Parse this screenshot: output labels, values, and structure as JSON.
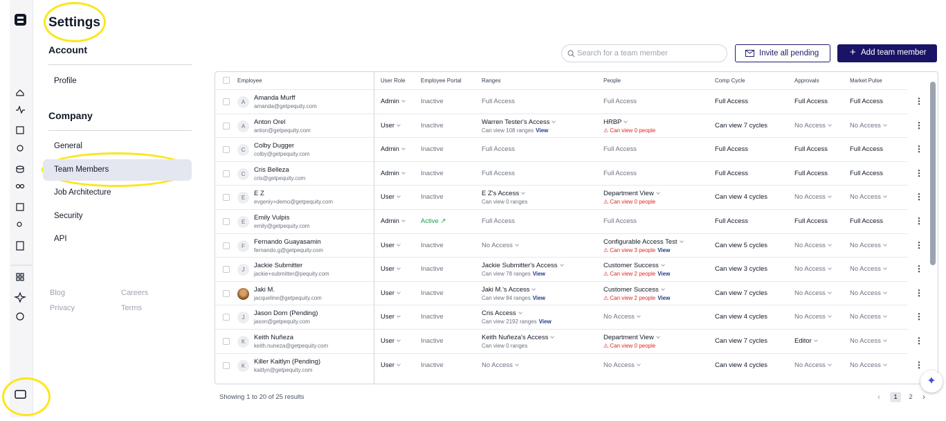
{
  "header": {
    "title": "Settings"
  },
  "nav": {
    "sections": [
      {
        "title": "Account",
        "items": [
          "Profile"
        ]
      },
      {
        "title": "Company",
        "items": [
          "General",
          "Team Members",
          "Job Architecture",
          "Security",
          "API"
        ]
      }
    ],
    "active": "Team Members",
    "footer": [
      "Blog",
      "Careers",
      "Privacy",
      "Terms"
    ]
  },
  "toolbar": {
    "search_placeholder": "Search for a team member",
    "invite": "Invite all pending",
    "add": "Add team member"
  },
  "table": {
    "columns": [
      "Employee",
      "User Role",
      "Employee Portal",
      "Ranges",
      "People",
      "Comp Cycle",
      "Approvals",
      "Market Pulse"
    ],
    "rows": [
      {
        "avatar": "A",
        "name": "Amanda Murff",
        "email": "amanda@getpequity.com",
        "role": "Admin",
        "portal": "Inactive",
        "ranges": {
          "text": "Full Access",
          "color": "#6b7280"
        },
        "people": {
          "text": "Full Access",
          "color": "#6b7280"
        },
        "comp": {
          "text": "Full Access"
        },
        "approvals": {
          "text": "Full Access"
        },
        "market": {
          "text": "Full Access"
        }
      },
      {
        "avatar": "A",
        "name": "Anton Orel",
        "email": "anton@getpequity.com",
        "role": "User",
        "portal": "Inactive",
        "ranges": {
          "text": "Warren Tester's Access",
          "dropdown": true,
          "sub": "Can view 108 ranges",
          "link": "View"
        },
        "people": {
          "text": "HRBP",
          "dropdown": true,
          "warn": "Can view 0 people"
        },
        "comp": {
          "text": "Can view 7 cycles"
        },
        "approvals": {
          "text": "No Access",
          "color": "#6b7280",
          "dropdown": true
        },
        "market": {
          "text": "No Access",
          "color": "#6b7280",
          "dropdown": true
        }
      },
      {
        "avatar": "C",
        "name": "Colby Dugger",
        "email": "colby@getpequity.com",
        "role": "Admin",
        "portal": "Inactive",
        "ranges": {
          "text": "Full Access",
          "color": "#6b7280"
        },
        "people": {
          "text": "Full Access",
          "color": "#6b7280"
        },
        "comp": {
          "text": "Full Access"
        },
        "approvals": {
          "text": "Full Access"
        },
        "market": {
          "text": "Full Access"
        }
      },
      {
        "avatar": "C",
        "name": "Cris Belleza",
        "email": "cris@getpequity.com",
        "role": "Admin",
        "portal": "Inactive",
        "ranges": {
          "text": "Full Access",
          "color": "#6b7280"
        },
        "people": {
          "text": "Full Access",
          "color": "#6b7280"
        },
        "comp": {
          "text": "Full Access"
        },
        "approvals": {
          "text": "Full Access"
        },
        "market": {
          "text": "Full Access"
        }
      },
      {
        "avatar": "E",
        "name": "E Z",
        "email": "evgeniy+demo@getpequity.com",
        "role": "User",
        "portal": "Inactive",
        "ranges": {
          "text": "E Z's Access",
          "dropdown": true,
          "sub": "Can view 0 ranges"
        },
        "people": {
          "text": "Department View",
          "dropdown": true,
          "warn": "Can view 0 people"
        },
        "comp": {
          "text": "Can view 4 cycles"
        },
        "approvals": {
          "text": "No Access",
          "color": "#6b7280",
          "dropdown": true
        },
        "market": {
          "text": "No Access",
          "color": "#6b7280",
          "dropdown": true
        }
      },
      {
        "avatar": "E",
        "name": "Emily Vulpis",
        "email": "emily@getpequity.com",
        "role": "Admin",
        "portal": "Active ↗",
        "portal_color": "#16a34a",
        "ranges": {
          "text": "Full Access",
          "color": "#6b7280"
        },
        "people": {
          "text": "Full Access",
          "color": "#6b7280"
        },
        "comp": {
          "text": "Full Access"
        },
        "approvals": {
          "text": "Full Access"
        },
        "market": {
          "text": "Full Access"
        }
      },
      {
        "avatar": "F",
        "name": "Fernando Guayasamin",
        "email": "fernando.g@getpequity.com",
        "role": "User",
        "portal": "Inactive",
        "ranges": {
          "text": "No Access",
          "color": "#6b7280",
          "dropdown": true
        },
        "people": {
          "text": "Configurable Access Test",
          "dropdown": true,
          "warn": "Can view 3 people",
          "link": "View"
        },
        "comp": {
          "text": "Can view 5 cycles"
        },
        "approvals": {
          "text": "No Access",
          "color": "#6b7280",
          "dropdown": true
        },
        "market": {
          "text": "No Access",
          "color": "#6b7280",
          "dropdown": true
        }
      },
      {
        "avatar": "J",
        "name": "Jackie Submitter",
        "email": "jackie+submitter@pequity.com",
        "role": "User",
        "portal": "Inactive",
        "ranges": {
          "text": "Jackie Submitter's Access",
          "dropdown": true,
          "sub": "Can view 78 ranges",
          "link": "View"
        },
        "people": {
          "text": "Customer Success",
          "dropdown": true,
          "warn": "Can view 2 people",
          "link": "View"
        },
        "comp": {
          "text": "Can view 3 cycles"
        },
        "approvals": {
          "text": "No Access",
          "color": "#6b7280",
          "dropdown": true
        },
        "market": {
          "text": "No Access",
          "color": "#6b7280",
          "dropdown": true
        }
      },
      {
        "name": "Jaki M.",
        "email": "jacqueline@getpequity.com",
        "role": "User",
        "portal": "Inactive",
        "ranges": {
          "text": "Jaki M.'s Access",
          "dropdown": true,
          "sub": "Can view 84 ranges",
          "link": "View"
        },
        "people": {
          "text": "Customer Success",
          "dropdown": true,
          "warn": "Can view 2 people",
          "link": "View"
        },
        "comp": {
          "text": "Can view 7 cycles"
        },
        "approvals": {
          "text": "No Access",
          "color": "#6b7280",
          "dropdown": true
        },
        "market": {
          "text": "No Access",
          "color": "#6b7280",
          "dropdown": true
        }
      },
      {
        "avatar": "J",
        "name": "Jason Dorn (Pending)",
        "email": "jason@getpequity.com",
        "role": "User",
        "portal": "Inactive",
        "ranges": {
          "text": "Cris Access",
          "dropdown": true,
          "sub": "Can view 2192 ranges",
          "link": "View"
        },
        "people": {
          "text": "No Access",
          "color": "#6b7280",
          "dropdown": true
        },
        "comp": {
          "text": "Can view 4 cycles"
        },
        "approvals": {
          "text": "No Access",
          "color": "#6b7280",
          "dropdown": true
        },
        "market": {
          "text": "No Access",
          "color": "#6b7280",
          "dropdown": true
        }
      },
      {
        "avatar": "K",
        "name": "Keith Nuñeza",
        "email": "keith.nuneza@getpequity.com",
        "role": "User",
        "portal": "Inactive",
        "ranges": {
          "text": "Keith Nuñeza's Access",
          "dropdown": true,
          "sub": "Can view 0 ranges"
        },
        "people": {
          "text": "Department View",
          "dropdown": true,
          "warn": "Can view 0 people"
        },
        "comp": {
          "text": "Can view 7 cycles"
        },
        "approvals": {
          "text": "Editor",
          "dropdown": true
        },
        "market": {
          "text": "No Access",
          "color": "#6b7280",
          "dropdown": true
        }
      },
      {
        "avatar": "K",
        "name": "Killer Kaitlyn (Pending)",
        "email": "kaitlyn@getpequity.com",
        "role": "User",
        "portal": "Inactive",
        "ranges": {
          "text": "No Access",
          "color": "#6b7280",
          "dropdown": true
        },
        "people": {
          "text": "No Access",
          "color": "#6b7280",
          "dropdown": true
        },
        "comp": {
          "text": "Can view 4 cycles"
        },
        "approvals": {
          "text": "No Access",
          "color": "#6b7280",
          "dropdown": true
        },
        "market": {
          "text": "No Access",
          "color": "#6b7280",
          "dropdown": true
        }
      }
    ]
  },
  "pagination": {
    "summary": "Showing 1 to 20 of 25 results",
    "pages": [
      "1",
      "2"
    ],
    "current": "1"
  }
}
